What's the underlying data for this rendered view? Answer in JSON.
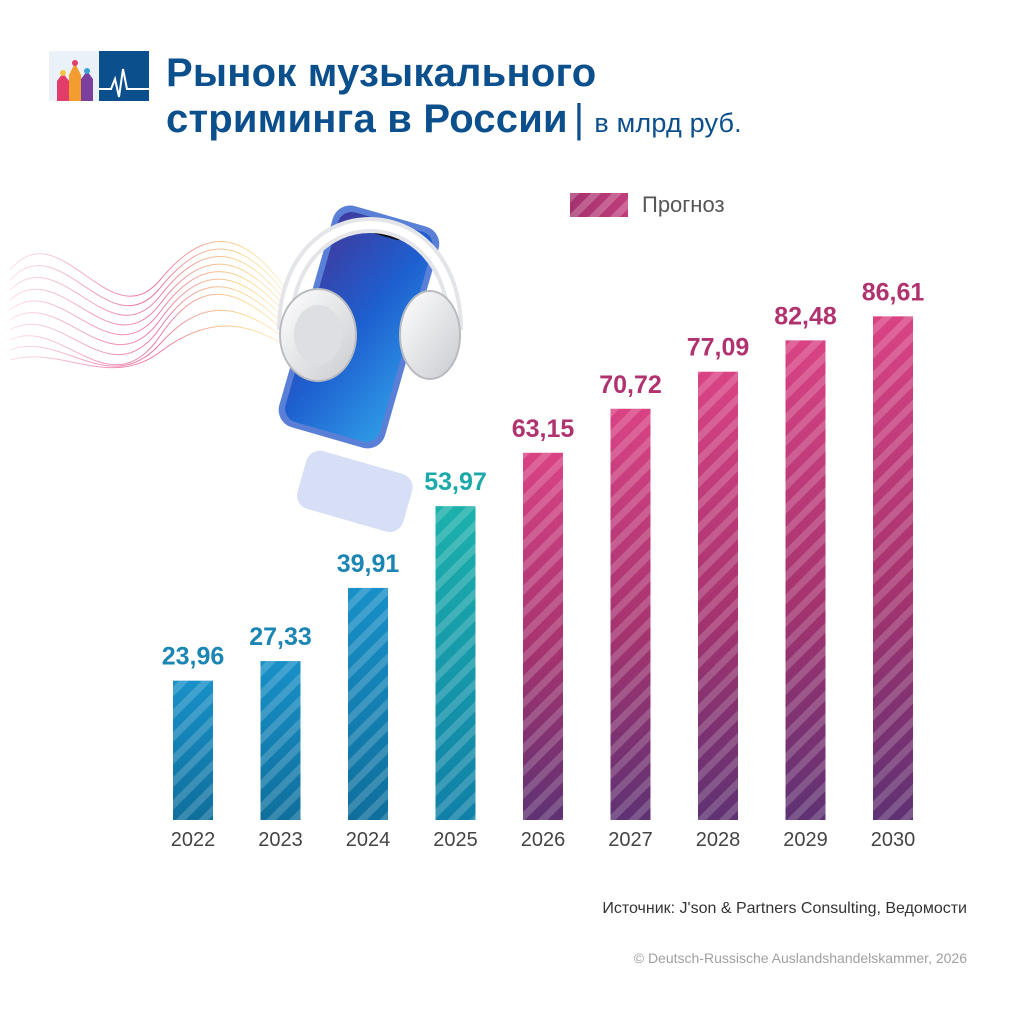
{
  "title": {
    "line1": "Рынок музыкального",
    "line2": "стриминга в России",
    "separator": "|",
    "unit": "в млрд руб."
  },
  "legend": {
    "forecast_label": "Прогноз"
  },
  "colors": {
    "title": "#0b4f8c",
    "actual_label": "#1b85b3",
    "actual_2025_label": "#1da9aa",
    "forecast_label": "#b0336f"
  },
  "chart_data": {
    "type": "bar",
    "title": "Рынок музыкального стриминга в России",
    "unit": "в млрд руб.",
    "categories": [
      "2022",
      "2023",
      "2024",
      "2025",
      "2026",
      "2027",
      "2028",
      "2029",
      "2030"
    ],
    "values": [
      23.96,
      27.33,
      39.91,
      53.97,
      63.15,
      70.72,
      77.09,
      82.48,
      86.61
    ],
    "value_labels": [
      "23,96",
      "27,33",
      "39,91",
      "53,97",
      "63,15",
      "70,72",
      "77,09",
      "82,48",
      "86,61"
    ],
    "forecast": [
      false,
      false,
      false,
      false,
      true,
      true,
      true,
      true,
      true
    ],
    "legend": [
      "Прогноз"
    ],
    "legend_position": "top-right",
    "ylim": [
      0,
      100
    ],
    "grid": false
  },
  "source": "Источник: J'son & Partners Consulting, Ведомости",
  "copyright": "© Deutsch-Russische Auslandshandelskammer, 2026"
}
